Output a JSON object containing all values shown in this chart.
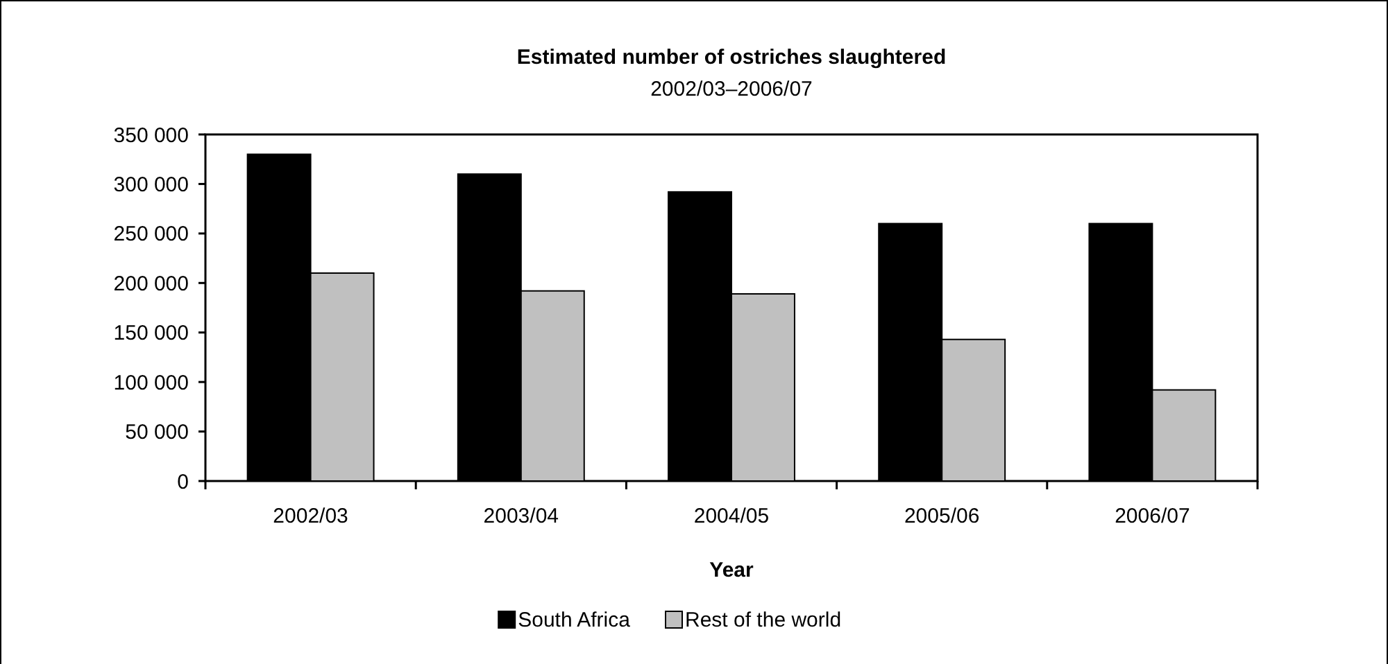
{
  "chart_data": {
    "type": "bar",
    "title": "Estimated number of ostriches slaughtered",
    "subtitle": "2002/03–2006/07",
    "xlabel": "Year",
    "categories": [
      "2002/03",
      "2003/04",
      "2004/05",
      "2005/06",
      "2006/07"
    ],
    "series": [
      {
        "name": "South Africa",
        "color": "#000000",
        "values": [
          330000,
          310000,
          292000,
          260000,
          260000
        ]
      },
      {
        "name": "Rest of the world",
        "color": "#c0c0c0",
        "values": [
          210000,
          192000,
          189000,
          143000,
          92000
        ]
      }
    ],
    "ylim": [
      0,
      350000
    ],
    "yticks": [
      {
        "value": 0,
        "label": "0"
      },
      {
        "value": 50000,
        "label": "50 000"
      },
      {
        "value": 100000,
        "label": "100 000"
      },
      {
        "value": 150000,
        "label": "150 000"
      },
      {
        "value": 200000,
        "label": "200 000"
      },
      {
        "value": 250000,
        "label": "250 000"
      },
      {
        "value": 300000,
        "label": "300 000"
      },
      {
        "value": 350000,
        "label": "350 000"
      }
    ],
    "grid": false,
    "legend": "bottom"
  }
}
